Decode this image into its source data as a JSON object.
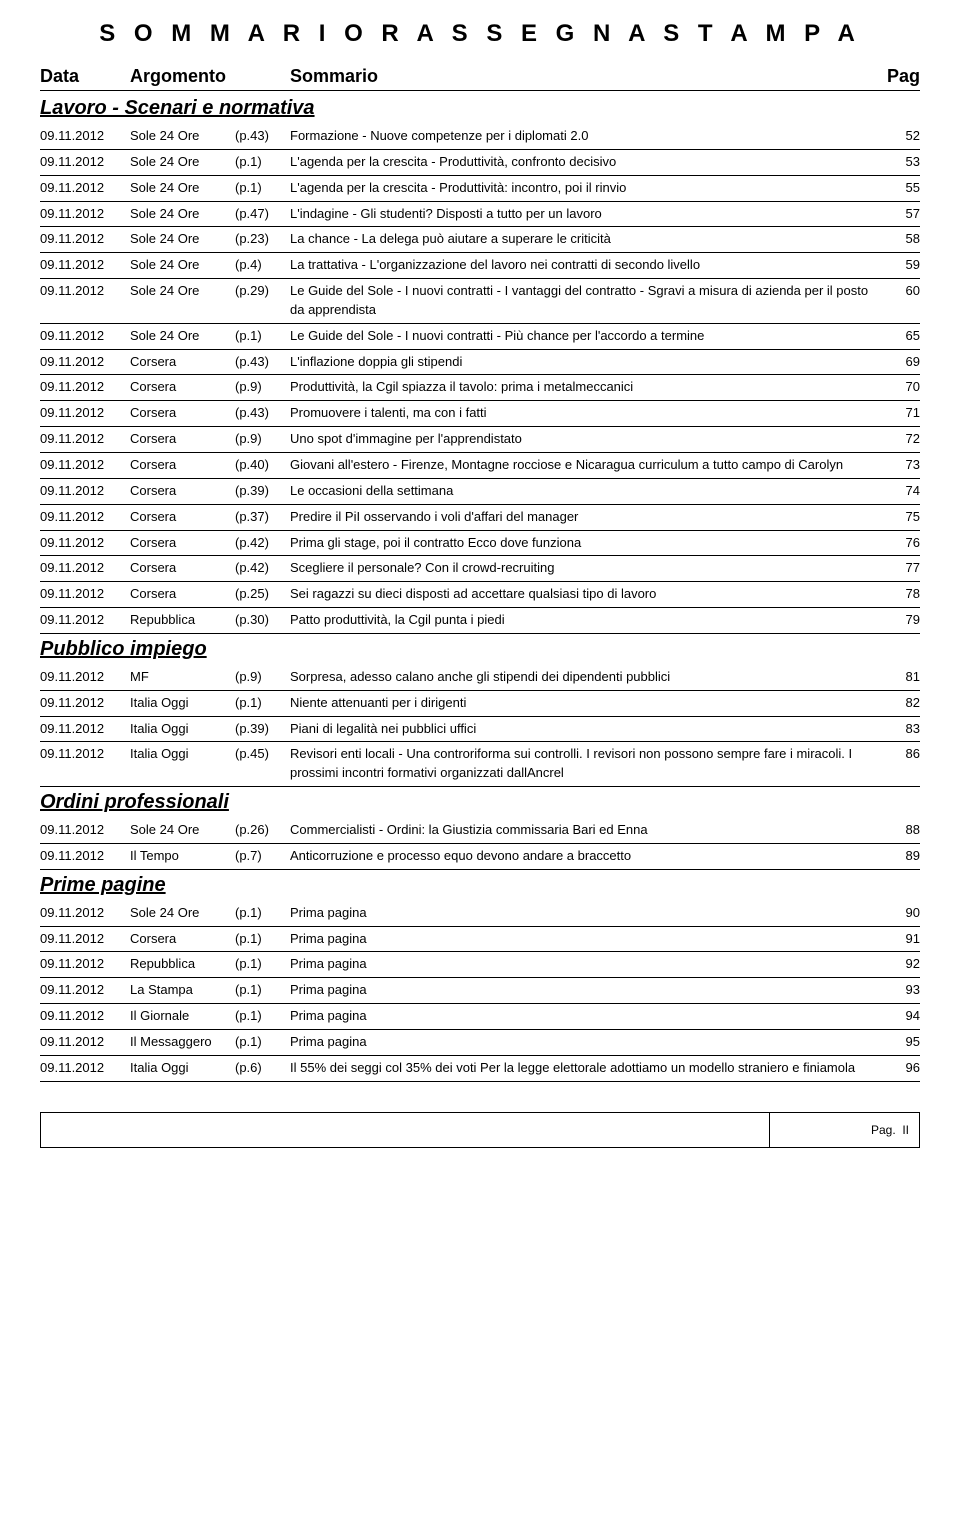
{
  "title": "S O M M A R I O   R A S S E G N A   S T A M P A",
  "headers": {
    "date": "Data",
    "argomento": "Argomento",
    "sommario": "Sommario",
    "pag": "Pag"
  },
  "footer": {
    "pag_label": "Pag.",
    "pag_value": "II"
  },
  "sections": [
    {
      "title": "Lavoro - Scenari e normativa",
      "rows": [
        {
          "date": "09.11.2012",
          "source": "Sole 24 Ore",
          "page": "(p.43)",
          "summary": "Formazione - Nuove competenze per i diplomati 2.0",
          "pag": "52"
        },
        {
          "date": "09.11.2012",
          "source": "Sole 24 Ore",
          "page": "(p.1)",
          "summary": "L'agenda per la crescita - Produttività, confronto decisivo",
          "pag": "53"
        },
        {
          "date": "09.11.2012",
          "source": "Sole 24 Ore",
          "page": "(p.1)",
          "summary": "L'agenda per la crescita - Produttività: incontro, poi il rinvio",
          "pag": "55"
        },
        {
          "date": "09.11.2012",
          "source": "Sole 24 Ore",
          "page": "(p.47)",
          "summary": "L'indagine - Gli studenti? Disposti a tutto per un lavoro",
          "pag": "57"
        },
        {
          "date": "09.11.2012",
          "source": "Sole 24 Ore",
          "page": "(p.23)",
          "summary": "La chance - La delega può aiutare a superare le criticità",
          "pag": "58"
        },
        {
          "date": "09.11.2012",
          "source": "Sole 24 Ore",
          "page": "(p.4)",
          "summary": "La trattativa - L'organizzazione del lavoro nei contratti di secondo livello",
          "pag": "59"
        },
        {
          "date": "09.11.2012",
          "source": "Sole 24 Ore",
          "page": "(p.29)",
          "summary": "Le Guide del Sole - I nuovi contratti - I vantaggi del contratto - Sgravi a misura di azienda per il posto da apprendista",
          "pag": "60"
        },
        {
          "date": "09.11.2012",
          "source": "Sole 24 Ore",
          "page": "(p.1)",
          "summary": "Le Guide del Sole - I nuovi contratti - Più chance per l'accordo a termine",
          "pag": "65"
        },
        {
          "date": "09.11.2012",
          "source": "Corsera",
          "page": "(p.43)",
          "summary": "L'inflazione doppia gli stipendi",
          "pag": "69"
        },
        {
          "date": "09.11.2012",
          "source": "Corsera",
          "page": "(p.9)",
          "summary": "Produttività, la Cgil  spiazza il tavolo: prima i metalmeccanici",
          "pag": "70"
        },
        {
          "date": "09.11.2012",
          "source": "Corsera",
          "page": "(p.43)",
          "summary": "Promuovere i talenti, ma con i fatti",
          "pag": "71"
        },
        {
          "date": "09.11.2012",
          "source": "Corsera",
          "page": "(p.9)",
          "summary": "Uno spot d'immagine per l'apprendistato",
          "pag": "72"
        },
        {
          "date": "09.11.2012",
          "source": "Corsera",
          "page": "(p.40)",
          "summary": "Giovani all'estero - Firenze, Montagne rocciose e Nicaragua curriculum a tutto campo di Carolyn",
          "pag": "73"
        },
        {
          "date": "09.11.2012",
          "source": "Corsera",
          "page": "(p.39)",
          "summary": "Le occasioni della settimana",
          "pag": "74"
        },
        {
          "date": "09.11.2012",
          "source": "Corsera",
          "page": "(p.37)",
          "summary": "Predire il PiI osservando i voli d'affari del manager",
          "pag": "75"
        },
        {
          "date": "09.11.2012",
          "source": "Corsera",
          "page": "(p.42)",
          "summary": "Prima gli stage, poi il contratto Ecco dove funziona",
          "pag": "76"
        },
        {
          "date": "09.11.2012",
          "source": "Corsera",
          "page": "(p.42)",
          "summary": "Scegliere il personale? Con il crowd-recruiting",
          "pag": "77"
        },
        {
          "date": "09.11.2012",
          "source": "Corsera",
          "page": "(p.25)",
          "summary": "Sei ragazzi su dieci disposti ad accettare qualsiasi tipo di lavoro",
          "pag": "78"
        },
        {
          "date": "09.11.2012",
          "source": "Repubblica",
          "page": "(p.30)",
          "summary": "Patto produttività, la Cgil punta i piedi",
          "pag": "79"
        }
      ]
    },
    {
      "title": "Pubblico impiego",
      "rows": [
        {
          "date": "09.11.2012",
          "source": "MF",
          "page": "(p.9)",
          "summary": "Sorpresa, adesso calano anche gli stipendi dei dipendenti pubblici",
          "pag": "81"
        },
        {
          "date": "09.11.2012",
          "source": "Italia Oggi",
          "page": "(p.1)",
          "summary": "Niente attenuanti per i dirigenti",
          "pag": "82"
        },
        {
          "date": "09.11.2012",
          "source": "Italia Oggi",
          "page": "(p.39)",
          "summary": "Piani di legalità nei pubblici uffici",
          "pag": "83"
        },
        {
          "date": "09.11.2012",
          "source": "Italia Oggi",
          "page": "(p.45)",
          "summary": "Revisori enti locali - Una controriforma sui controlli. I revisori non possono sempre fare i miracoli. I prossimi incontri formativi organizzati dallAncrel",
          "pag": "86"
        }
      ]
    },
    {
      "title": "Ordini professionali",
      "rows": [
        {
          "date": "09.11.2012",
          "source": "Sole 24 Ore",
          "page": "(p.26)",
          "summary": "Commercialisti - Ordini: la Giustizia  commissaria Bari ed Enna",
          "pag": "88"
        },
        {
          "date": "09.11.2012",
          "source": "Il Tempo",
          "page": "(p.7)",
          "summary": "Anticorruzione e processo equo devono andare a braccetto",
          "pag": "89"
        }
      ]
    },
    {
      "title": "Prime pagine",
      "rows": [
        {
          "date": "09.11.2012",
          "source": "Sole 24 Ore",
          "page": "(p.1)",
          "summary": "Prima pagina",
          "pag": "90"
        },
        {
          "date": "09.11.2012",
          "source": "Corsera",
          "page": "(p.1)",
          "summary": "Prima pagina",
          "pag": "91"
        },
        {
          "date": "09.11.2012",
          "source": "Repubblica",
          "page": "(p.1)",
          "summary": "Prima pagina",
          "pag": "92"
        },
        {
          "date": "09.11.2012",
          "source": "La Stampa",
          "page": "(p.1)",
          "summary": "Prima pagina",
          "pag": "93"
        },
        {
          "date": "09.11.2012",
          "source": "Il Giornale",
          "page": "(p.1)",
          "summary": "Prima pagina",
          "pag": "94"
        },
        {
          "date": "09.11.2012",
          "source": "Il Messaggero",
          "page": "(p.1)",
          "summary": "Prima pagina",
          "pag": "95"
        },
        {
          "date": "09.11.2012",
          "source": "Italia Oggi",
          "page": "(p.6)",
          "summary": "Il 55% dei seggi col 35% dei voti  Per la legge elettorale adottiamo un modello straniero e finiamola",
          "pag": "96"
        }
      ]
    }
  ]
}
